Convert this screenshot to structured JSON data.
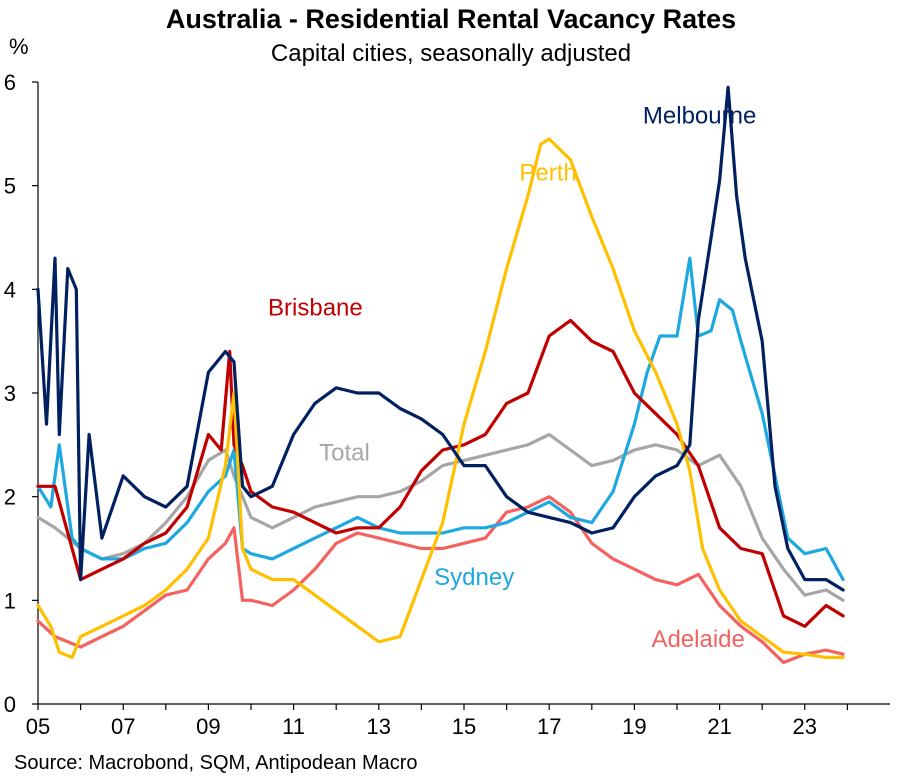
{
  "title": "Australia - Residential Rental Vacancy Rates",
  "subtitle": "Capital cities, seasonally adjusted",
  "y_unit": "%",
  "source": "Source: Macrobond, SQM, Antipodean Macro",
  "chart_data": {
    "type": "line",
    "title": "Australia - Residential Rental Vacancy Rates",
    "subtitle": "Capital cities, seasonally adjusted",
    "xlabel": "",
    "ylabel": "%",
    "xlim": [
      2005,
      2025
    ],
    "ylim": [
      0,
      6
    ],
    "x_ticks": [
      2005,
      2007,
      2009,
      2011,
      2013,
      2015,
      2017,
      2019,
      2021,
      2023
    ],
    "x_tick_labels": [
      "05",
      "07",
      "09",
      "11",
      "13",
      "15",
      "17",
      "19",
      "21",
      "23"
    ],
    "y_ticks": [
      0,
      1,
      2,
      3,
      4,
      5,
      6
    ],
    "y_tick_labels": [
      "0",
      "1",
      "2",
      "3",
      "4",
      "5",
      "6"
    ],
    "grid": false,
    "legend": "inline labels",
    "series": [
      {
        "name": "Total",
        "color": "#A6A6A6",
        "label_x": 2011.6,
        "label_y": 2.35,
        "x": [
          2005.0,
          2005.4,
          2006.0,
          2006.5,
          2007.0,
          2007.5,
          2008.0,
          2008.5,
          2009.0,
          2009.4,
          2009.6,
          2010.0,
          2010.5,
          2011.0,
          2011.5,
          2012.0,
          2012.5,
          2013.0,
          2013.5,
          2014.0,
          2014.5,
          2015.0,
          2015.5,
          2016.0,
          2016.5,
          2017.0,
          2017.5,
          2018.0,
          2018.5,
          2019.0,
          2019.5,
          2020.0,
          2020.5,
          2021.0,
          2021.5,
          2022.0,
          2022.5,
          2023.0,
          2023.5,
          2023.9
        ],
        "y": [
          1.8,
          1.7,
          1.5,
          1.4,
          1.45,
          1.55,
          1.75,
          2.0,
          2.35,
          2.45,
          2.2,
          1.8,
          1.7,
          1.8,
          1.9,
          1.95,
          2.0,
          2.0,
          2.05,
          2.15,
          2.3,
          2.35,
          2.4,
          2.45,
          2.5,
          2.6,
          2.45,
          2.3,
          2.35,
          2.45,
          2.5,
          2.45,
          2.3,
          2.4,
          2.1,
          1.6,
          1.3,
          1.05,
          1.1,
          1.0
        ]
      },
      {
        "name": "Adelaide",
        "color": "#F4625F",
        "label_x": 2019.4,
        "label_y": 0.55,
        "x": [
          2005.0,
          2005.4,
          2006.0,
          2006.5,
          2007.0,
          2007.5,
          2008.0,
          2008.5,
          2009.0,
          2009.4,
          2009.6,
          2009.8,
          2010.0,
          2010.5,
          2011.0,
          2011.5,
          2012.0,
          2012.5,
          2013.0,
          2013.5,
          2014.0,
          2014.5,
          2015.0,
          2015.5,
          2016.0,
          2016.5,
          2017.0,
          2017.5,
          2018.0,
          2018.5,
          2019.0,
          2019.5,
          2020.0,
          2020.5,
          2021.0,
          2021.5,
          2022.0,
          2022.5,
          2023.0,
          2023.5,
          2023.9
        ],
        "y": [
          0.8,
          0.65,
          0.55,
          0.65,
          0.75,
          0.9,
          1.05,
          1.1,
          1.4,
          1.55,
          1.7,
          1.0,
          1.0,
          0.95,
          1.1,
          1.3,
          1.55,
          1.65,
          1.6,
          1.55,
          1.5,
          1.5,
          1.55,
          1.6,
          1.85,
          1.9,
          2.0,
          1.85,
          1.55,
          1.4,
          1.3,
          1.2,
          1.15,
          1.25,
          0.95,
          0.75,
          0.6,
          0.4,
          0.48,
          0.52,
          0.48
        ]
      },
      {
        "name": "Sydney",
        "color": "#1DA8E0",
        "label_x": 2014.3,
        "label_y": 1.15,
        "x": [
          2005.0,
          2005.3,
          2005.5,
          2005.8,
          2006.0,
          2006.5,
          2007.0,
          2007.5,
          2008.0,
          2008.5,
          2009.0,
          2009.4,
          2009.6,
          2009.8,
          2010.0,
          2010.5,
          2011.0,
          2011.5,
          2012.0,
          2012.5,
          2013.0,
          2013.5,
          2014.0,
          2014.5,
          2015.0,
          2015.5,
          2016.0,
          2016.5,
          2017.0,
          2017.5,
          2018.0,
          2018.5,
          2019.0,
          2019.3,
          2019.6,
          2020.0,
          2020.3,
          2020.5,
          2020.8,
          2021.0,
          2021.3,
          2021.5,
          2022.0,
          2022.3,
          2022.6,
          2023.0,
          2023.5,
          2023.9
        ],
        "y": [
          2.1,
          1.9,
          2.5,
          1.6,
          1.5,
          1.4,
          1.4,
          1.5,
          1.55,
          1.75,
          2.05,
          2.2,
          2.45,
          1.5,
          1.45,
          1.4,
          1.5,
          1.6,
          1.7,
          1.8,
          1.7,
          1.65,
          1.65,
          1.65,
          1.7,
          1.7,
          1.75,
          1.85,
          1.95,
          1.8,
          1.75,
          2.05,
          2.7,
          3.2,
          3.55,
          3.55,
          4.3,
          3.55,
          3.6,
          3.9,
          3.8,
          3.5,
          2.8,
          2.2,
          1.6,
          1.45,
          1.5,
          1.2
        ]
      },
      {
        "name": "Brisbane",
        "color": "#C00000",
        "label_x": 2010.4,
        "label_y": 3.75,
        "x": [
          2005.0,
          2005.4,
          2006.0,
          2006.5,
          2007.0,
          2007.5,
          2008.0,
          2008.5,
          2009.0,
          2009.3,
          2009.5,
          2009.6,
          2009.8,
          2010.0,
          2010.5,
          2011.0,
          2011.5,
          2012.0,
          2012.5,
          2013.0,
          2013.5,
          2014.0,
          2014.5,
          2015.0,
          2015.5,
          2016.0,
          2016.5,
          2017.0,
          2017.5,
          2018.0,
          2018.5,
          2019.0,
          2019.5,
          2020.0,
          2020.5,
          2021.0,
          2021.5,
          2022.0,
          2022.5,
          2023.0,
          2023.5,
          2023.9
        ],
        "y": [
          2.1,
          2.1,
          1.2,
          1.3,
          1.4,
          1.55,
          1.65,
          1.9,
          2.6,
          2.45,
          3.4,
          2.5,
          2.3,
          2.05,
          1.9,
          1.85,
          1.75,
          1.65,
          1.7,
          1.7,
          1.9,
          2.25,
          2.45,
          2.5,
          2.6,
          2.9,
          3.0,
          3.55,
          3.7,
          3.5,
          3.4,
          3.0,
          2.8,
          2.6,
          2.3,
          1.7,
          1.5,
          1.45,
          0.85,
          0.75,
          0.95,
          0.85
        ]
      },
      {
        "name": "Perth",
        "color": "#FFC000",
        "label_x": 2016.3,
        "label_y": 5.05,
        "x": [
          2005.0,
          2005.3,
          2005.5,
          2005.8,
          2006.0,
          2006.5,
          2007.0,
          2007.5,
          2008.0,
          2008.5,
          2009.0,
          2009.4,
          2009.6,
          2009.8,
          2010.0,
          2010.5,
          2011.0,
          2011.5,
          2012.0,
          2012.5,
          2013.0,
          2013.5,
          2014.0,
          2014.5,
          2015.0,
          2015.5,
          2016.0,
          2016.5,
          2016.8,
          2017.0,
          2017.5,
          2018.0,
          2018.5,
          2019.0,
          2019.5,
          2020.0,
          2020.3,
          2020.6,
          2021.0,
          2021.5,
          2022.0,
          2022.5,
          2023.0,
          2023.5,
          2023.9
        ],
        "y": [
          0.95,
          0.75,
          0.5,
          0.45,
          0.65,
          0.75,
          0.85,
          0.95,
          1.1,
          1.3,
          1.6,
          2.3,
          3.0,
          1.5,
          1.3,
          1.2,
          1.2,
          1.05,
          0.9,
          0.75,
          0.6,
          0.65,
          1.2,
          1.75,
          2.7,
          3.4,
          4.2,
          4.9,
          5.4,
          5.45,
          5.25,
          4.7,
          4.2,
          3.6,
          3.2,
          2.7,
          2.25,
          1.5,
          1.1,
          0.8,
          0.65,
          0.5,
          0.48,
          0.45,
          0.45
        ]
      },
      {
        "name": "Melbourne",
        "color": "#002060",
        "label_x": 2019.2,
        "label_y": 5.6,
        "x": [
          2005.0,
          2005.2,
          2005.4,
          2005.5,
          2005.7,
          2005.9,
          2006.0,
          2006.2,
          2006.5,
          2007.0,
          2007.5,
          2008.0,
          2008.5,
          2009.0,
          2009.4,
          2009.6,
          2009.8,
          2010.0,
          2010.5,
          2011.0,
          2011.5,
          2012.0,
          2012.5,
          2013.0,
          2013.5,
          2014.0,
          2014.5,
          2015.0,
          2015.5,
          2016.0,
          2016.5,
          2017.0,
          2017.5,
          2018.0,
          2018.5,
          2019.0,
          2019.5,
          2020.0,
          2020.3,
          2020.5,
          2020.8,
          2021.0,
          2021.2,
          2021.4,
          2021.6,
          2022.0,
          2022.3,
          2022.6,
          2023.0,
          2023.5,
          2023.9
        ],
        "y": [
          4.0,
          2.7,
          4.3,
          2.6,
          4.2,
          4.0,
          1.2,
          2.6,
          1.6,
          2.2,
          2.0,
          1.9,
          2.1,
          3.2,
          3.4,
          3.3,
          2.1,
          2.0,
          2.1,
          2.6,
          2.9,
          3.05,
          3.0,
          3.0,
          2.85,
          2.75,
          2.6,
          2.3,
          2.3,
          2.0,
          1.85,
          1.8,
          1.75,
          1.65,
          1.7,
          2.0,
          2.2,
          2.3,
          2.5,
          3.7,
          4.5,
          5.05,
          5.95,
          4.9,
          4.3,
          3.5,
          2.1,
          1.5,
          1.2,
          1.2,
          1.1
        ]
      }
    ]
  }
}
